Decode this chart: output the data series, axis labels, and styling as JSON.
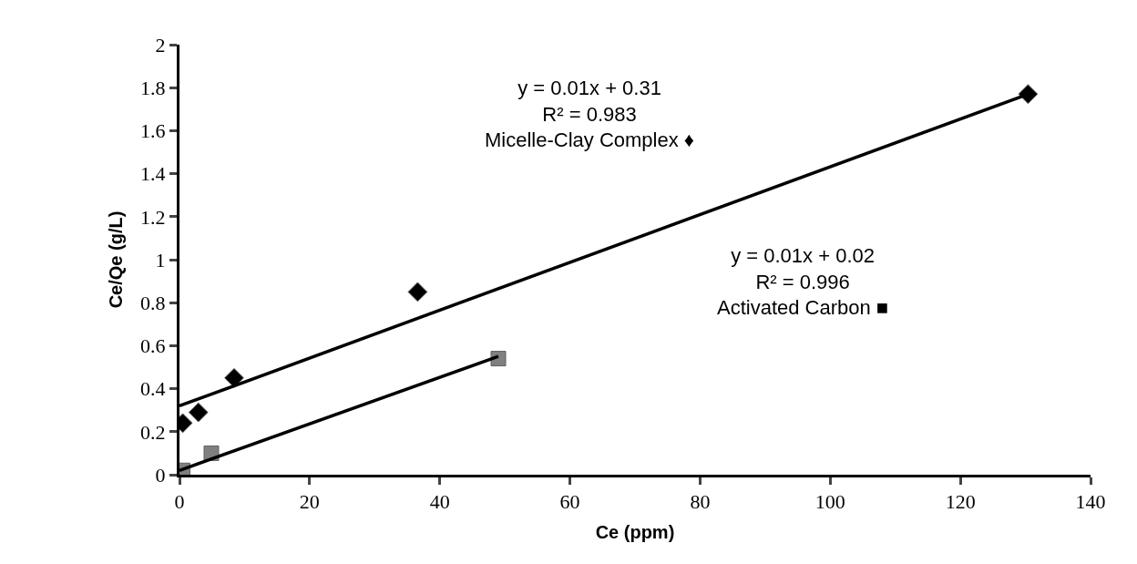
{
  "chart_data": {
    "type": "scatter",
    "xlabel": "Ce (ppm)",
    "ylabel": "Ce/Qe (g/L)",
    "xlim": [
      0,
      140
    ],
    "xticks": [
      0,
      20,
      40,
      60,
      80,
      100,
      120,
      140
    ],
    "ylim": [
      0,
      2
    ],
    "yticks": [
      0,
      0.2,
      0.4,
      0.6,
      0.8,
      1,
      1.2,
      1.4,
      1.6,
      1.8,
      2
    ],
    "series": [
      {
        "marker": "diamond",
        "color": "#000000",
        "x": [
          0.5,
          2.9,
          8.4,
          36.6,
          130.4
        ],
        "values": [
          0.24,
          0.29,
          0.45,
          0.85,
          1.77
        ]
      },
      {
        "marker": "square",
        "color": "#808080",
        "x": [
          0.5,
          4.9,
          49
        ],
        "values": [
          0.02,
          0.1,
          0.54
        ]
      },
      {
        "type": "line",
        "marker": "none",
        "line_style": "solid",
        "color": "#000000",
        "x": [
          0,
          130.4
        ],
        "values": [
          0.32,
          1.77
        ]
      },
      {
        "type": "line",
        "marker": "none",
        "line_style": "solid",
        "color": "#000000",
        "x": [
          0,
          49
        ],
        "values": [
          0.02,
          0.55
        ]
      }
    ],
    "annotations": [
      "y = 0.01x + 0.31\nR² = 0.983\nMicelle-Clay Complex ♦",
      "y = 0.01x + 0.02\nR² = 0.996\nActivated Carbon ■"
    ]
  }
}
